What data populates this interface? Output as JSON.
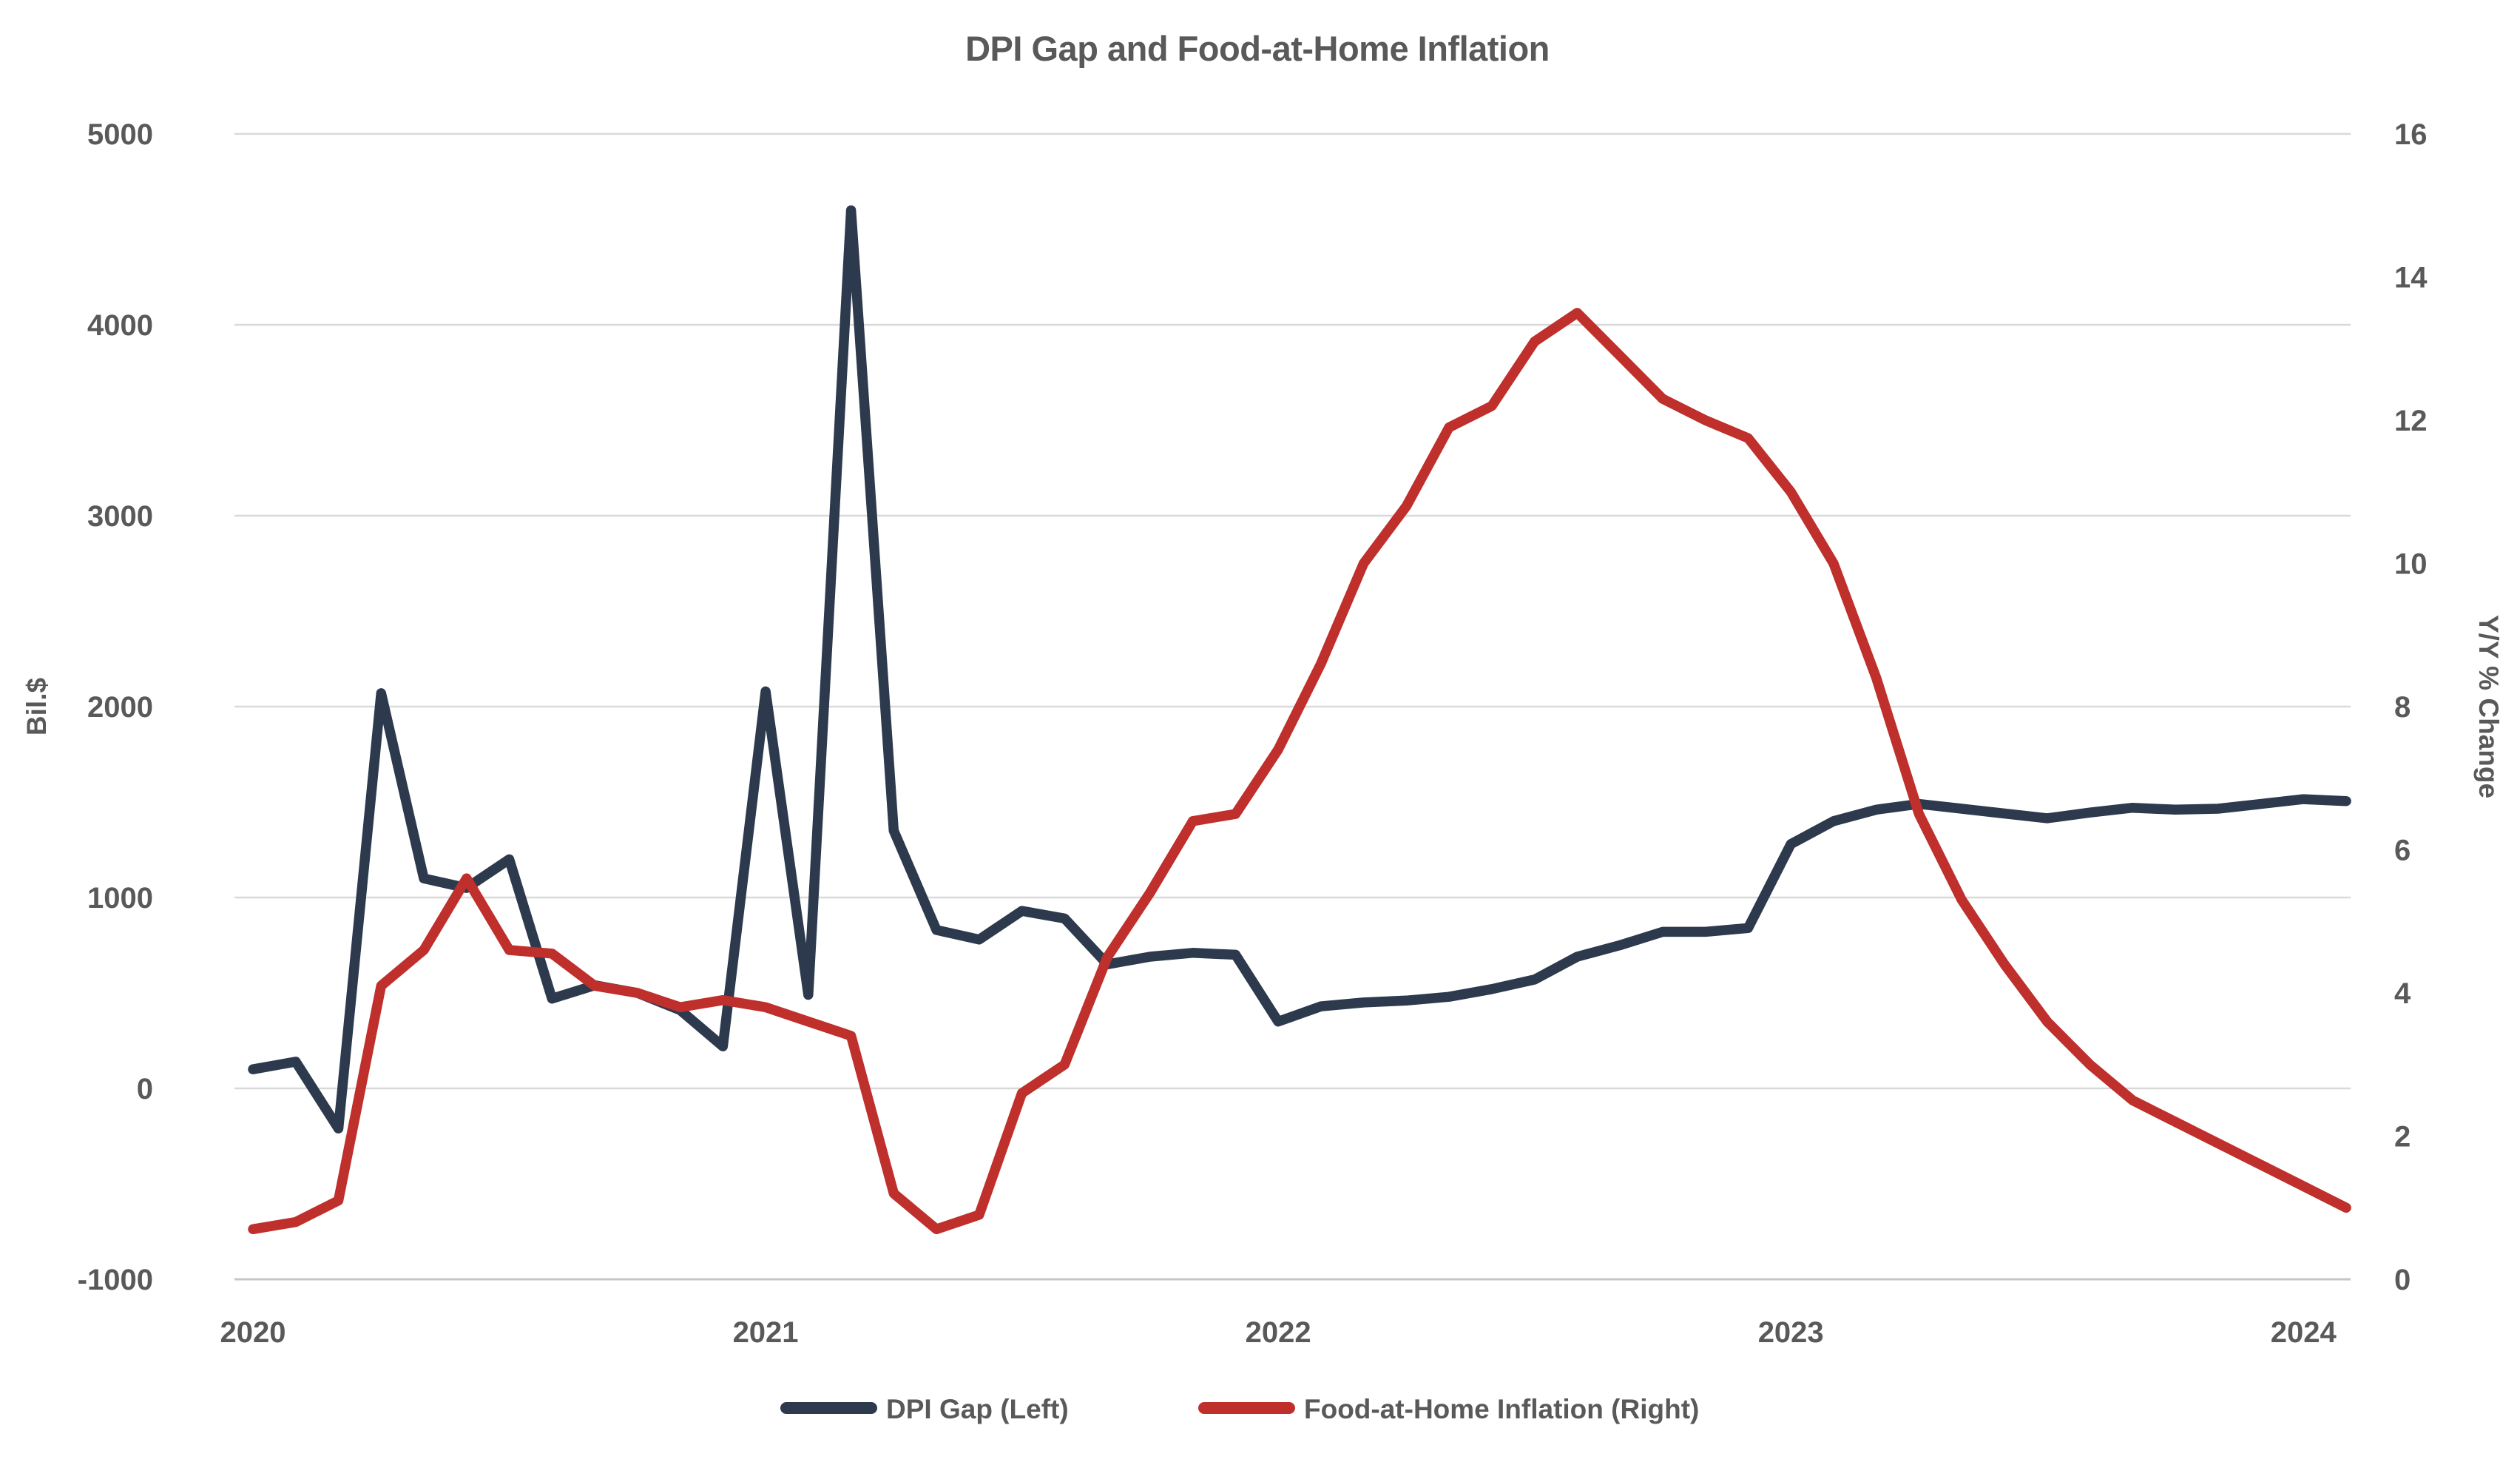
{
  "title": "DPI Gap and Food-at-Home Inflation",
  "colors": {
    "dpi_gap": "#2D3A4D",
    "inflation": "#BF2F2B",
    "gridline": "#D9D9D9",
    "baseline": "#C6C6C6",
    "text": "#595959",
    "background": "#FFFFFF"
  },
  "left_axis": {
    "title": "Bil.$",
    "ticks": [
      "5000",
      "4000",
      "3000",
      "2000",
      "1000",
      "0",
      "-1000"
    ]
  },
  "right_axis": {
    "title": "Y/Y % Change",
    "ticks": [
      "16",
      "14",
      "12",
      "10",
      "8",
      "6",
      "4",
      "2",
      "0"
    ]
  },
  "x_axis": {
    "ticks": [
      "2020",
      "2021",
      "2022",
      "2023",
      "2024"
    ]
  },
  "legend": {
    "items": [
      {
        "label": "DPI Gap (Left)",
        "color_key": "dpi_gap"
      },
      {
        "label": "Food-at-Home Inflation (Right)",
        "color_key": "inflation"
      }
    ]
  },
  "chart_data": {
    "type": "line",
    "x": [
      "Jan 2020",
      "Feb 2020",
      "Mar 2020",
      "Apr 2020",
      "May 2020",
      "Jun 2020",
      "Jul 2020",
      "Aug 2020",
      "Sep 2020",
      "Oct 2020",
      "Nov 2020",
      "Dec 2020",
      "Jan 2021",
      "Feb 2021",
      "Mar 2021",
      "Apr 2021",
      "May 2021",
      "Jun 2021",
      "Jul 2021",
      "Aug 2021",
      "Sep 2021",
      "Oct 2021",
      "Nov 2021",
      "Dec 2021",
      "Jan 2022",
      "Feb 2022",
      "Mar 2022",
      "Apr 2022",
      "May 2022",
      "Jun 2022",
      "Jul 2022",
      "Aug 2022",
      "Sep 2022",
      "Oct 2022",
      "Nov 2022",
      "Dec 2022",
      "Jan 2023",
      "Feb 2023",
      "Mar 2023",
      "Apr 2023",
      "May 2023",
      "Jun 2023",
      "Jul 2023",
      "Aug 2023",
      "Sep 2023",
      "Oct 2023",
      "Nov 2023",
      "Dec 2023",
      "Jan 2024",
      "Feb 2024"
    ],
    "series": [
      {
        "name": "DPI Gap (Left)",
        "axis": "left",
        "unit": "Bil.$",
        "values": [
          100,
          140,
          -210,
          2070,
          1100,
          1050,
          1200,
          470,
          540,
          500,
          410,
          220,
          2080,
          490,
          4600,
          1350,
          830,
          780,
          930,
          890,
          650,
          690,
          710,
          700,
          350,
          430,
          450,
          460,
          480,
          520,
          570,
          690,
          750,
          820,
          820,
          840,
          1280,
          1400,
          1460,
          1490,
          1465,
          1440,
          1415,
          1445,
          1470,
          1460,
          1465,
          1490,
          1515,
          1505
        ]
      },
      {
        "name": "Food-at-Home Inflation (Right)",
        "axis": "right",
        "unit": "Y/Y % Change",
        "values": [
          0.7,
          0.8,
          1.1,
          4.1,
          4.6,
          5.6,
          4.6,
          4.55,
          4.1,
          4.0,
          3.8,
          3.9,
          3.8,
          3.6,
          3.4,
          1.2,
          0.7,
          0.9,
          2.6,
          3.0,
          4.5,
          5.4,
          6.4,
          6.5,
          7.4,
          8.6,
          10.0,
          10.8,
          11.9,
          12.2,
          13.1,
          13.5,
          12.9,
          12.3,
          12.0,
          11.75,
          11.0,
          10.0,
          8.4,
          6.5,
          5.3,
          4.4,
          3.6,
          3.0,
          2.5,
          2.2,
          1.9,
          1.6,
          1.3,
          1.0
        ]
      }
    ],
    "title": "DPI Gap and Food-at-Home Inflation",
    "xlabel": "",
    "ylabel_left": "Bil.$",
    "ylabel_right": "Y/Y % Change",
    "left_ylim": [
      -1000,
      5000
    ],
    "right_ylim": [
      0,
      16
    ],
    "grid": "horizontal",
    "legend_position": "bottom"
  }
}
